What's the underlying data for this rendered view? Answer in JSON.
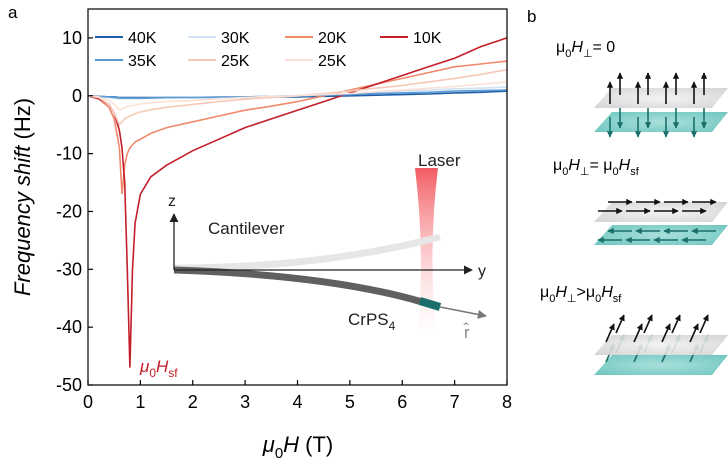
{
  "chart_data": {
    "type": "line",
    "panel_label": "a",
    "x_label": [
      "μ",
      "0",
      "H",
      " (T)"
    ],
    "y_label": [
      "Frequency shift",
      " (Hz)"
    ],
    "xlim": [
      0,
      8
    ],
    "xticks": [
      0,
      1,
      2,
      3,
      4,
      5,
      6,
      7,
      8
    ],
    "ylim": [
      -50,
      15
    ],
    "yticks": [
      -50,
      -40,
      -30,
      -20,
      -10,
      0,
      10
    ],
    "x": [
      0,
      0.2,
      0.4,
      0.5,
      0.6,
      0.65,
      0.7,
      0.75,
      0.8,
      0.85,
      0.9,
      1.0,
      1.2,
      1.5,
      2,
      2.5,
      3,
      3.5,
      4,
      4.5,
      5,
      5.5,
      6,
      6.5,
      7,
      7.5,
      8
    ],
    "series": [
      {
        "name": "40K",
        "color": "#1f5fa8",
        "values": [
          0,
          -0.1,
          -0.2,
          -0.2,
          -0.3,
          -0.3,
          -0.3,
          -0.3,
          -0.3,
          -0.3,
          -0.3,
          -0.3,
          -0.3,
          -0.3,
          -0.3,
          -0.3,
          -0.3,
          -0.2,
          -0.2,
          -0.1,
          0,
          0.1,
          0.2,
          0.3,
          0.5,
          0.6,
          0.8
        ]
      },
      {
        "name": "30K",
        "color": "#d3e2f2",
        "values": [
          0,
          -0.1,
          -0.3,
          -0.4,
          -0.5,
          -0.5,
          -0.5,
          -0.5,
          -0.5,
          -0.5,
          -0.5,
          -0.5,
          -0.4,
          -0.4,
          -0.3,
          -0.3,
          -0.2,
          -0.1,
          0,
          0.2,
          0.4,
          0.6,
          0.8,
          1.0,
          1.2,
          1.3,
          1.5
        ]
      },
      {
        "name": "20K",
        "color": "#ef8a6b",
        "values": [
          0,
          -0.5,
          -2,
          -4,
          -9,
          -17,
          -12,
          -10,
          -9,
          -8.5,
          -8,
          -7.5,
          -6.5,
          -5.5,
          -4.5,
          -3.5,
          -2.5,
          -1.8,
          -1,
          0,
          1,
          2,
          3,
          4,
          5,
          5.5,
          6
        ]
      },
      {
        "name": "10K",
        "color": "#c41e2a",
        "values": [
          0,
          -0.5,
          -1.5,
          -3,
          -6,
          -9,
          -15,
          -30,
          -47,
          -30,
          -22,
          -17,
          -14,
          -12,
          -9.5,
          -7.5,
          -5.5,
          -4,
          -2.5,
          -1,
          0.5,
          2,
          3.5,
          5,
          6.5,
          8.5,
          10
        ]
      },
      {
        "name": "35K",
        "color": "#5b9bd5",
        "values": [
          0,
          -0.1,
          -0.2,
          -0.3,
          -0.4,
          -0.4,
          -0.4,
          -0.4,
          -0.4,
          -0.4,
          -0.4,
          -0.4,
          -0.4,
          -0.3,
          -0.3,
          -0.2,
          -0.2,
          -0.1,
          0,
          0.1,
          0.2,
          0.4,
          0.5,
          0.6,
          0.8,
          0.9,
          1.0
        ]
      },
      {
        "name": "25K",
        "color": "#f6c9b8",
        "values": [
          0,
          -0.3,
          -1.5,
          -3,
          -5,
          -4.5,
          -4,
          -3.7,
          -3.5,
          -3.3,
          -3.1,
          -2.8,
          -2.4,
          -2,
          -1.5,
          -1,
          -0.6,
          -0.3,
          0,
          0.4,
          0.8,
          1.3,
          1.8,
          2.4,
          3,
          3.7,
          4.5
        ]
      },
      {
        "name": "25K",
        "color": "#fbe2d8",
        "values": [
          0,
          -0.2,
          -0.8,
          -1.5,
          -2.5,
          -2.3,
          -2.1,
          -1.9,
          -1.8,
          -1.7,
          -1.6,
          -1.4,
          -1.2,
          -1,
          -0.8,
          -0.5,
          -0.3,
          -0.1,
          0,
          0.2,
          0.4,
          0.7,
          1,
          1.3,
          1.6,
          2,
          2.4
        ]
      }
    ],
    "annotations": {
      "spin_flop": [
        "μ",
        "0",
        "H",
        "sf"
      ],
      "laser": "Laser",
      "cantilever": "Cantilever",
      "z_axis": "z",
      "y_axis": "y",
      "sample": [
        "CrPS",
        "4"
      ],
      "r_hat": "r̂"
    }
  },
  "panel_b": {
    "label": "b",
    "states": [
      [
        "μ",
        "0",
        "H",
        "⊥",
        "= 0"
      ],
      [
        "μ",
        "0",
        "H",
        "⊥",
        "= μ",
        "0",
        "H",
        "sf"
      ],
      [
        "μ",
        "0",
        "H",
        "⊥",
        ">μ",
        "0",
        "H",
        "sf"
      ]
    ]
  }
}
